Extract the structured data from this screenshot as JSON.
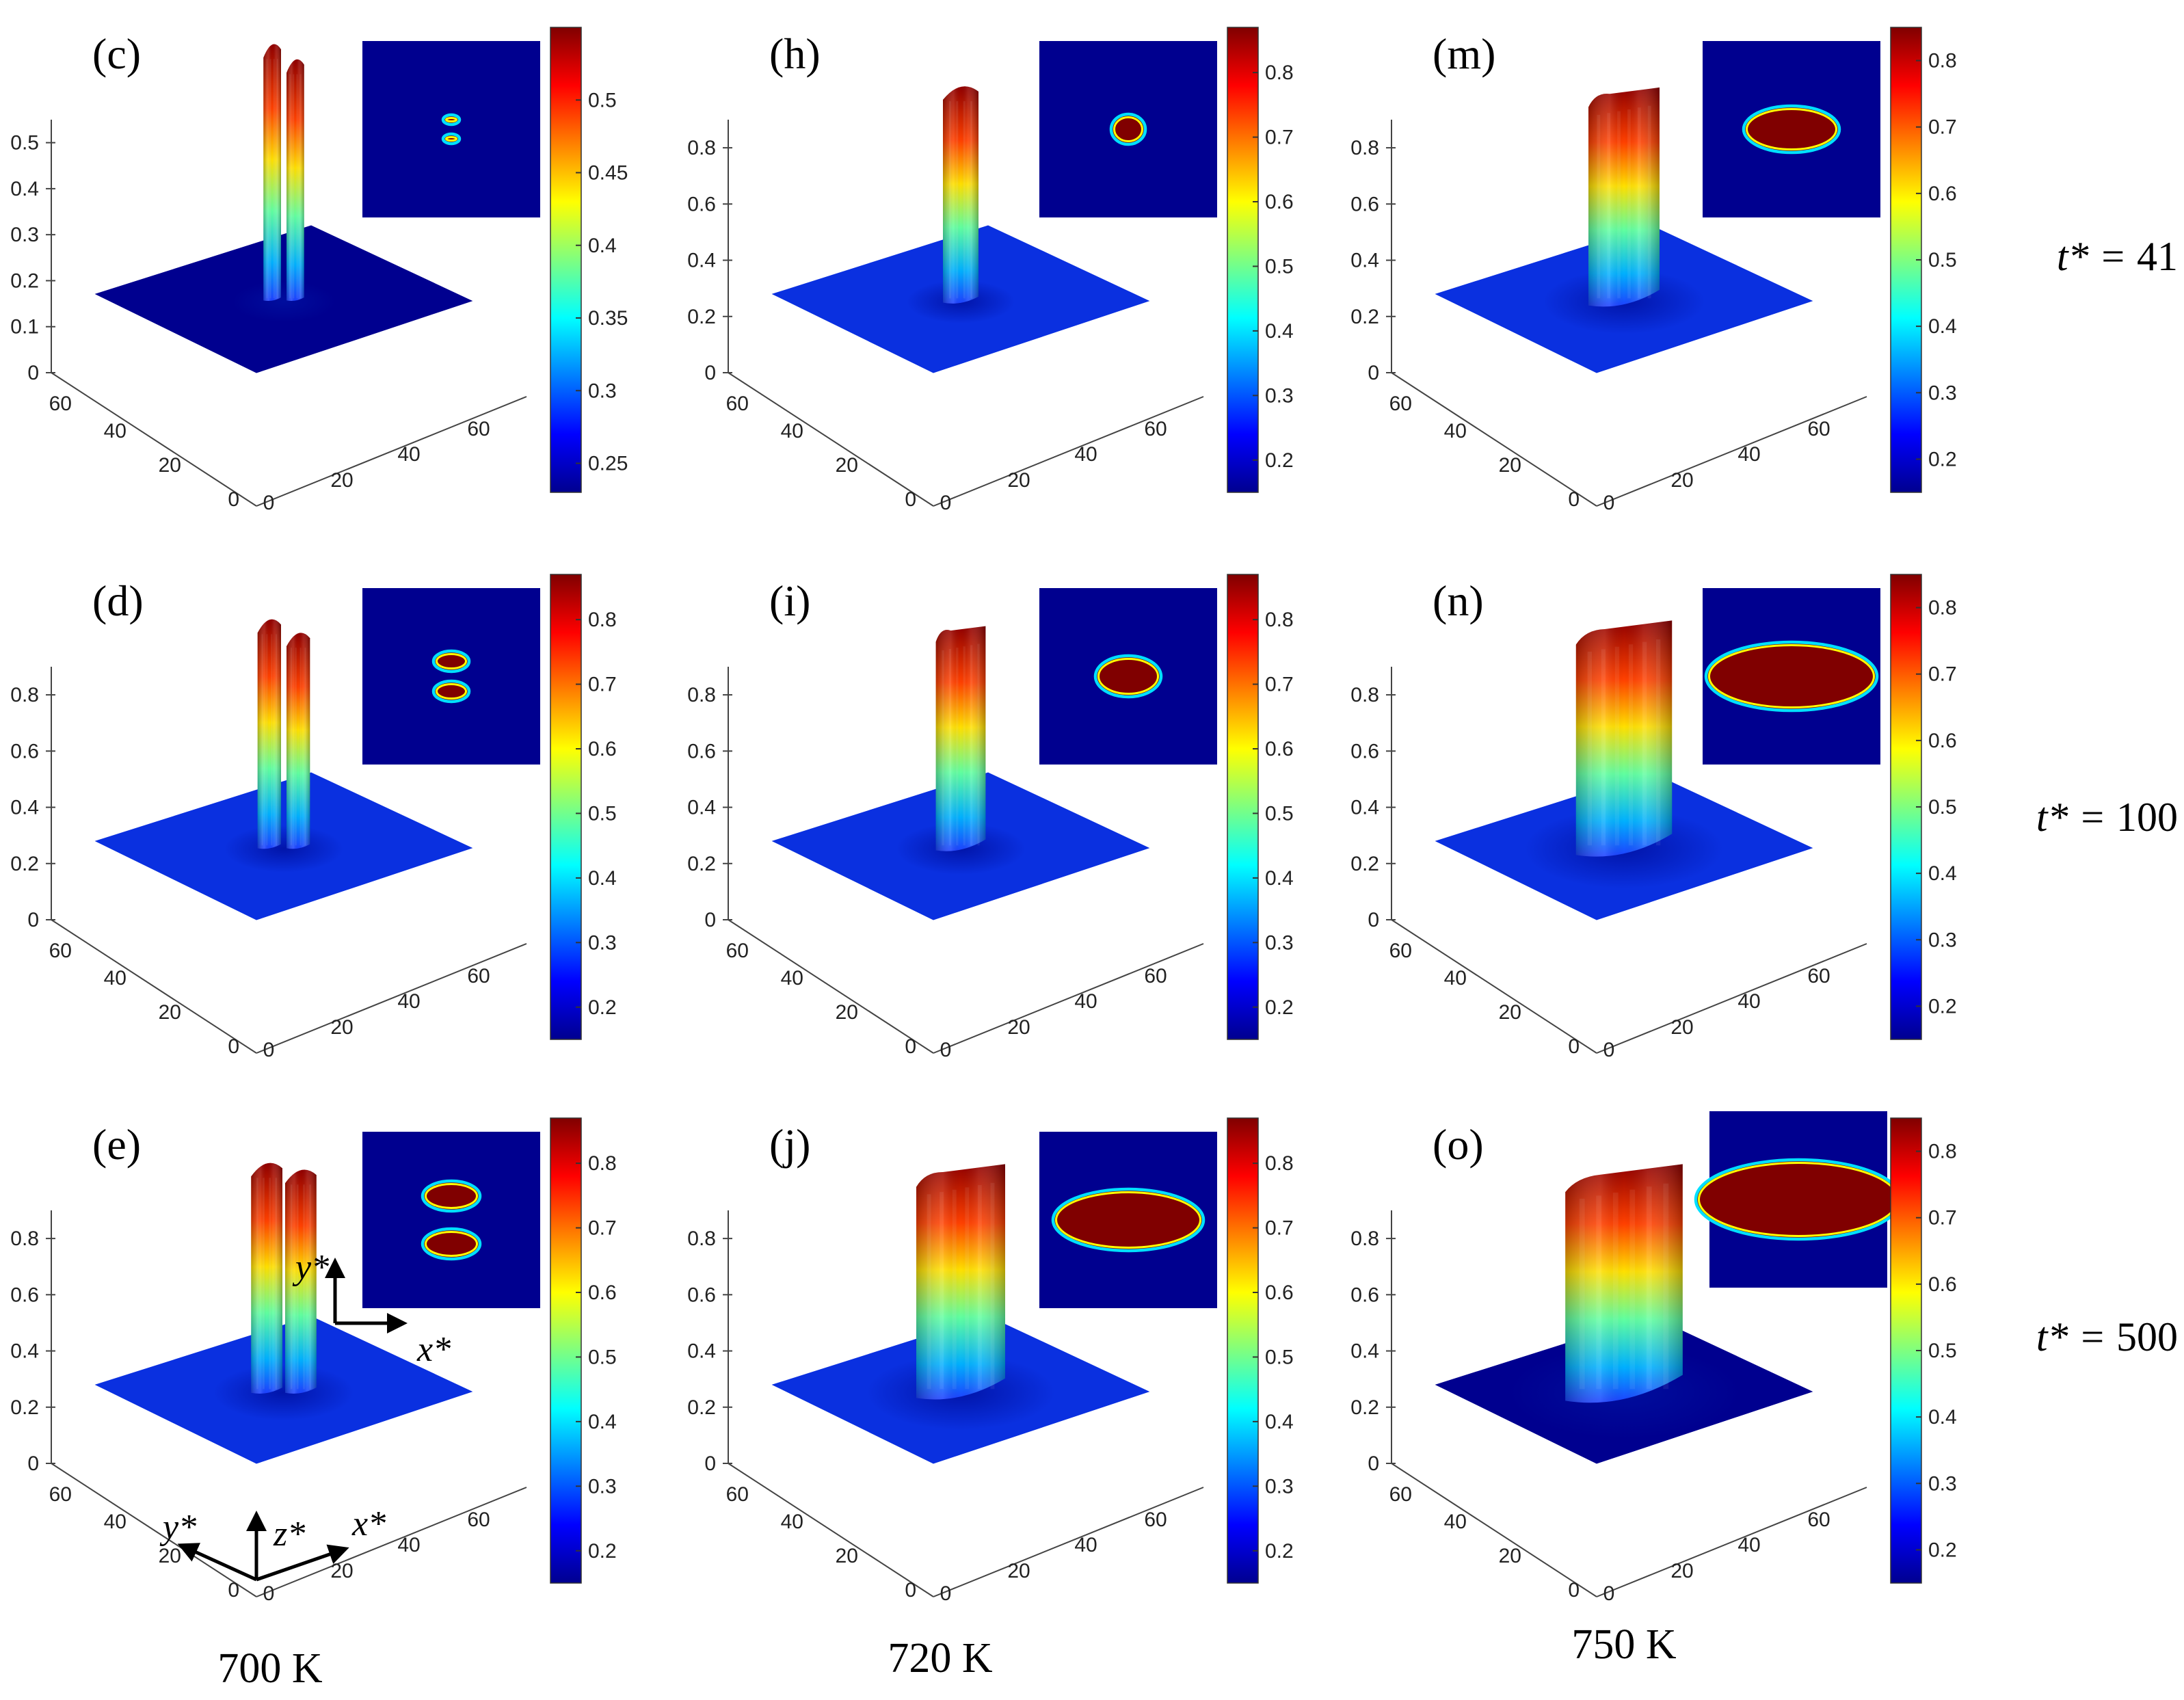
{
  "figure": {
    "panels": [
      {
        "label": "(c)",
        "temp": "700 K",
        "time": "41",
        "ztick_labels": [
          "0",
          "0.1",
          "0.2",
          "0.3",
          "0.4",
          "0.5"
        ],
        "ztick_values": [
          0,
          0.1,
          0.2,
          0.3,
          0.4,
          0.5
        ],
        "zmax": 0.55,
        "colorbar_ticks": [
          "0.25",
          "0.3",
          "0.35",
          "0.4",
          "0.45",
          "0.5"
        ],
        "colorbar_values": [
          0.25,
          0.3,
          0.35,
          0.4,
          0.45,
          0.5
        ],
        "colorbar_range": [
          0.23,
          0.55
        ],
        "shape": "two-peaks",
        "peak": 0.55,
        "spread": 0.09,
        "inset": "two-dots",
        "base_color": "#00008f",
        "has_axis_icons": false
      },
      {
        "label": "(d)",
        "temp": "700 K",
        "time": "100",
        "ztick_labels": [
          "0",
          "0.2",
          "0.4",
          "0.6",
          "0.8"
        ],
        "ztick_values": [
          0,
          0.2,
          0.4,
          0.6,
          0.8
        ],
        "zmax": 0.9,
        "colorbar_ticks": [
          "0.2",
          "0.3",
          "0.4",
          "0.5",
          "0.6",
          "0.7",
          "0.8"
        ],
        "colorbar_values": [
          0.2,
          0.3,
          0.4,
          0.5,
          0.6,
          0.7,
          0.8
        ],
        "colorbar_range": [
          0.15,
          0.87
        ],
        "shape": "two-peaks",
        "peak": 0.8,
        "spread": 0.12,
        "inset": "two-small-ellipses",
        "base_color": "#0a30e0",
        "has_axis_icons": false
      },
      {
        "label": "(e)",
        "temp": "700 K",
        "time": "500",
        "ztick_labels": [
          "0",
          "0.2",
          "0.4",
          "0.6",
          "0.8"
        ],
        "ztick_values": [
          0,
          0.2,
          0.4,
          0.6,
          0.8
        ],
        "zmax": 0.9,
        "colorbar_ticks": [
          "0.2",
          "0.3",
          "0.4",
          "0.5",
          "0.6",
          "0.7",
          "0.8"
        ],
        "colorbar_values": [
          0.2,
          0.3,
          0.4,
          0.5,
          0.6,
          0.7,
          0.8
        ],
        "colorbar_range": [
          0.15,
          0.87
        ],
        "shape": "two-plateaus",
        "peak": 0.8,
        "spread": 0.16,
        "inset": "two-ellipses",
        "base_color": "#0a30e0",
        "has_axis_icons": true
      },
      {
        "label": "(h)",
        "temp": "720 K",
        "time": "41",
        "ztick_labels": [
          "0",
          "0.2",
          "0.4",
          "0.6",
          "0.8"
        ],
        "ztick_values": [
          0,
          0.2,
          0.4,
          0.6,
          0.8
        ],
        "zmax": 0.9,
        "colorbar_ticks": [
          "0.2",
          "0.3",
          "0.4",
          "0.5",
          "0.6",
          "0.7",
          "0.8"
        ],
        "colorbar_values": [
          0.2,
          0.3,
          0.4,
          0.5,
          0.6,
          0.7,
          0.8
        ],
        "colorbar_range": [
          0.15,
          0.87
        ],
        "shape": "peak",
        "peak": 0.75,
        "spread": 0.1,
        "inset": "small-circle",
        "base_color": "#0a30e0",
        "has_axis_icons": false
      },
      {
        "label": "(i)",
        "temp": "720 K",
        "time": "100",
        "ztick_labels": [
          "0",
          "0.2",
          "0.4",
          "0.6",
          "0.8"
        ],
        "ztick_values": [
          0,
          0.2,
          0.4,
          0.6,
          0.8
        ],
        "zmax": 0.9,
        "colorbar_ticks": [
          "0.2",
          "0.3",
          "0.4",
          "0.5",
          "0.6",
          "0.7",
          "0.8"
        ],
        "colorbar_values": [
          0.2,
          0.3,
          0.4,
          0.5,
          0.6,
          0.7,
          0.8
        ],
        "colorbar_range": [
          0.15,
          0.87
        ],
        "shape": "plateau",
        "peak": 0.78,
        "spread": 0.14,
        "inset": "small-ellipse",
        "base_color": "#0a30e0",
        "has_axis_icons": false
      },
      {
        "label": "(j)",
        "temp": "720 K",
        "time": "500",
        "ztick_labels": [
          "0",
          "0.2",
          "0.4",
          "0.6",
          "0.8"
        ],
        "ztick_values": [
          0,
          0.2,
          0.4,
          0.6,
          0.8
        ],
        "zmax": 0.9,
        "colorbar_ticks": [
          "0.2",
          "0.3",
          "0.4",
          "0.5",
          "0.6",
          "0.7",
          "0.8"
        ],
        "colorbar_values": [
          0.2,
          0.3,
          0.4,
          0.5,
          0.6,
          0.7,
          0.8
        ],
        "colorbar_range": [
          0.15,
          0.87
        ],
        "shape": "wide-plateau",
        "peak": 0.8,
        "spread": 0.25,
        "inset": "large-ellipse",
        "base_color": "#0a30e0",
        "has_axis_icons": false
      },
      {
        "label": "(m)",
        "temp": "750 K",
        "time": "41",
        "ztick_labels": [
          "0",
          "0.2",
          "0.4",
          "0.6",
          "0.8"
        ],
        "ztick_values": [
          0,
          0.2,
          0.4,
          0.6,
          0.8
        ],
        "zmax": 0.9,
        "colorbar_ticks": [
          "0.2",
          "0.3",
          "0.4",
          "0.5",
          "0.6",
          "0.7",
          "0.8"
        ],
        "colorbar_values": [
          0.2,
          0.3,
          0.4,
          0.5,
          0.6,
          0.7,
          0.8
        ],
        "colorbar_range": [
          0.15,
          0.85
        ],
        "shape": "plateau",
        "peak": 0.75,
        "spread": 0.2,
        "inset": "medium-ellipse",
        "base_color": "#0a30e0",
        "has_axis_icons": false
      },
      {
        "label": "(n)",
        "temp": "750 K",
        "time": "100",
        "ztick_labels": [
          "0",
          "0.2",
          "0.4",
          "0.6",
          "0.8"
        ],
        "ztick_values": [
          0,
          0.2,
          0.4,
          0.6,
          0.8
        ],
        "zmax": 0.9,
        "colorbar_ticks": [
          "0.2",
          "0.3",
          "0.4",
          "0.5",
          "0.6",
          "0.7",
          "0.8"
        ],
        "colorbar_values": [
          0.2,
          0.3,
          0.4,
          0.5,
          0.6,
          0.7,
          0.8
        ],
        "colorbar_range": [
          0.15,
          0.85
        ],
        "shape": "wide-plateau",
        "peak": 0.8,
        "spread": 0.27,
        "inset": "larger-ellipse",
        "base_color": "#0a30e0",
        "has_axis_icons": false
      },
      {
        "label": "(o)",
        "temp": "750 K",
        "time": "500",
        "ztick_labels": [
          "0",
          "0.2",
          "0.4",
          "0.6",
          "0.8"
        ],
        "ztick_values": [
          0,
          0.2,
          0.4,
          0.6,
          0.8
        ],
        "zmax": 0.9,
        "colorbar_ticks": [
          "0.2",
          "0.3",
          "0.4",
          "0.5",
          "0.6",
          "0.7",
          "0.8"
        ],
        "colorbar_values": [
          0.2,
          0.3,
          0.4,
          0.5,
          0.6,
          0.7,
          0.8
        ],
        "colorbar_range": [
          0.15,
          0.85
        ],
        "shape": "very-wide-plateau",
        "peak": 0.8,
        "spread": 0.33,
        "inset": "huge-ellipse",
        "base_color": "#00008f",
        "has_axis_icons": false
      }
    ],
    "xy_tick_labels": [
      "0",
      "20",
      "40",
      "60"
    ],
    "row_time_prefix": "t* = ",
    "row_times": [
      "41",
      "100",
      "500"
    ],
    "temperatures": [
      "700 K",
      "720 K",
      "750 K"
    ],
    "axis_icons": {
      "inset_y": "y*",
      "inset_x": "x*",
      "axis_y": "y*",
      "axis_z": "z*",
      "axis_x": "x*"
    }
  }
}
